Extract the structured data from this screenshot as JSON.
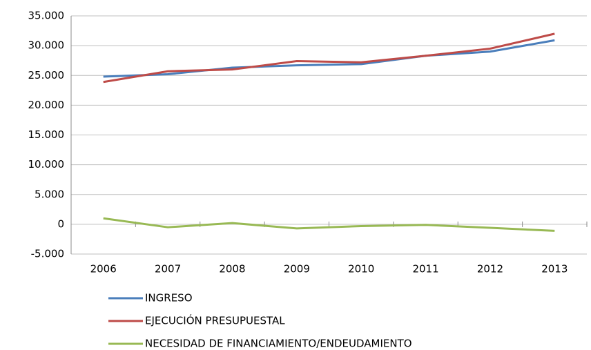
{
  "chart_data": {
    "type": "line",
    "categories": [
      "2006",
      "2007",
      "2008",
      "2009",
      "2010",
      "2011",
      "2012",
      "2013"
    ],
    "series": [
      {
        "name": "INGRESO",
        "color": "#4a7ebb",
        "values": [
          24800,
          25200,
          26300,
          26700,
          26900,
          28300,
          29000,
          30900
        ]
      },
      {
        "name": "EJECUCIÓN PRESUPUESTAL",
        "color": "#be4b48",
        "values": [
          23900,
          25700,
          26000,
          27400,
          27200,
          28300,
          29500,
          32000
        ]
      },
      {
        "name": "NECESIDAD DE FINANCIAMIENTO/ENDEUDAMIENTO",
        "color": "#98b954",
        "values": [
          1000,
          -500,
          200,
          -700,
          -300,
          -100,
          -600,
          -1100
        ]
      }
    ],
    "ylim": [
      -5000,
      35000
    ],
    "yticks": [
      {
        "value": -5000,
        "label": "-5.000"
      },
      0,
      {
        "value": 5000,
        "label": "5.000"
      },
      {
        "value": 10000,
        "label": "10.000"
      },
      {
        "value": 15000,
        "label": "15.000"
      },
      {
        "value": 20000,
        "label": "20.000"
      },
      {
        "value": 25000,
        "label": "25.000"
      },
      {
        "value": 30000,
        "label": "30.000"
      },
      {
        "value": 35000,
        "label": "35.000"
      }
    ],
    "grid": true
  }
}
